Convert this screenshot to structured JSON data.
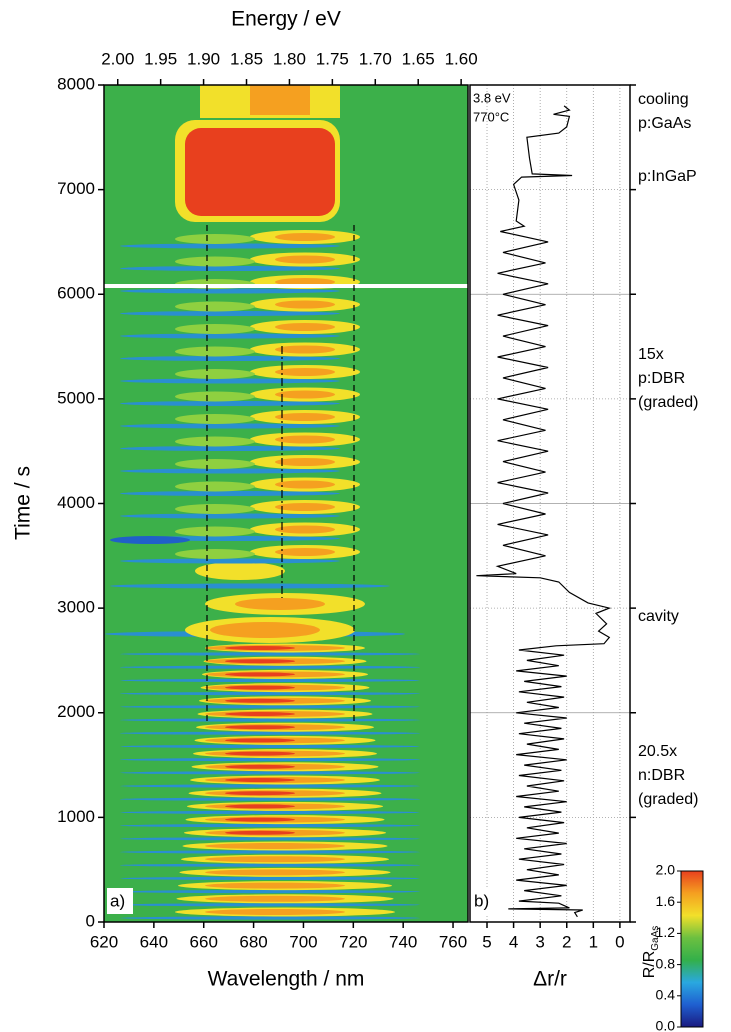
{
  "chart_data": [
    {
      "type": "heatmap",
      "panel_label": "a)",
      "xlabel": "Wavelength / nm",
      "x2label": "Energy / eV",
      "ylabel": "Time / s",
      "xlim": [
        620,
        766
      ],
      "xticks": [
        620,
        640,
        660,
        680,
        700,
        720,
        740,
        760
      ],
      "x2lim": [
        2.016,
        1.592
      ],
      "x2ticks": [
        {
          "value": 2,
          "label": "2.00"
        },
        1.95,
        {
          "value": 1.9,
          "label": "1.90"
        },
        1.85,
        {
          "value": 1.8,
          "label": "1.80"
        },
        1.75,
        {
          "value": 1.7,
          "label": "1.70"
        },
        1.65,
        {
          "value": 1.6,
          "label": "1.60"
        }
      ],
      "ylim": [
        0,
        8000
      ],
      "yticks": [
        0,
        1000,
        2000,
        3000,
        4000,
        5000,
        6000,
        7000,
        8000
      ]
    },
    {
      "type": "line",
      "panel_label": "b)",
      "xlabel": "Δr/r",
      "annotation": [
        "3.8 eV",
        "770°C"
      ],
      "stage_labels": [
        [
          "cooling",
          "p:GaAs"
        ],
        [
          "p:InGaP"
        ],
        [
          "15x",
          "p:DBR",
          "(graded)"
        ],
        [
          "cavity"
        ],
        [
          "20.5x",
          "n:DBR",
          "(graded)"
        ]
      ],
      "xlim": [
        5.64,
        -0.38
      ],
      "xticks": [
        5,
        4,
        3,
        2,
        1,
        0
      ],
      "grid": true,
      "series": [
        {
          "color": "#000000",
          "x": [
            50,
            90,
            115,
            125,
            135,
            180,
            200,
            250,
            300,
            350,
            400,
            450,
            500,
            550,
            600,
            650,
            700,
            750,
            800,
            850,
            900,
            950,
            1000,
            1050,
            1100,
            1150,
            1200,
            1250,
            1300,
            1350,
            1400,
            1450,
            1500,
            1550,
            1600,
            1650,
            1700,
            1750,
            1800,
            1850,
            1900,
            1950,
            2000,
            2050,
            2100,
            2150,
            2200,
            2250,
            2300,
            2350,
            2400,
            2450,
            2500,
            2550,
            2600,
            2640,
            2660,
            2720,
            2780,
            2850,
            2950,
            3000,
            3050,
            3150,
            3250,
            3290,
            3310,
            3330,
            3400,
            3500,
            3600,
            3700,
            3800,
            3900,
            4000,
            4100,
            4200,
            4300,
            4400,
            4500,
            4600,
            4700,
            4800,
            4900,
            5000,
            5100,
            5200,
            5300,
            5400,
            5500,
            5600,
            5700,
            5800,
            5900,
            6000,
            6100,
            6200,
            6300,
            6400,
            6500,
            6600,
            6650,
            6700,
            6900,
            7050,
            7120,
            7135,
            7150,
            7300,
            7500,
            7540,
            7600,
            7700,
            7720,
            7760,
            7800
          ],
          "values": [
            1.6,
            1.7,
            1.4,
            4.2,
            1.9,
            2.3,
            3.8,
            2.2,
            3.6,
            2.0,
            3.9,
            2.3,
            3.5,
            2.1,
            3.8,
            2.2,
            3.6,
            2.0,
            3.9,
            2.3,
            3.5,
            2.1,
            3.8,
            2.2,
            3.6,
            2.0,
            3.9,
            2.3,
            3.5,
            2.1,
            3.8,
            2.2,
            3.6,
            2.0,
            3.9,
            2.3,
            3.5,
            2.1,
            3.8,
            2.2,
            3.6,
            2.0,
            3.9,
            2.3,
            3.5,
            2.1,
            3.8,
            2.2,
            3.6,
            2.0,
            3.9,
            2.3,
            3.5,
            2.1,
            3.8,
            2.4,
            0.6,
            0.4,
            0.8,
            0.5,
            0.9,
            0.4,
            1.2,
            1.9,
            2.3,
            3.0,
            5.4,
            3.9,
            4.6,
            2.8,
            4.4,
            2.7,
            4.6,
            2.8,
            4.4,
            2.7,
            4.6,
            2.8,
            4.4,
            2.7,
            4.6,
            2.8,
            4.4,
            2.7,
            4.6,
            2.8,
            4.4,
            2.7,
            4.6,
            2.8,
            4.4,
            2.7,
            4.6,
            2.8,
            4.4,
            2.7,
            4.6,
            2.8,
            4.4,
            2.7,
            4.5,
            3.6,
            3.9,
            3.8,
            4.0,
            3.7,
            1.8,
            3.3,
            3.4,
            3.5,
            2.3,
            2.0,
            1.9,
            2.5,
            1.9,
            2.1
          ]
        }
      ]
    },
    {
      "type": "colorbar",
      "label": "R/R",
      "label_sub": "GaAs",
      "lim": [
        0,
        2
      ],
      "ticks": [
        {
          "value": 0,
          "label": "0.0"
        },
        0.4,
        0.8,
        1.2,
        1.6,
        {
          "value": 2,
          "label": "2.0"
        }
      ],
      "colormap": [
        "#1a1a80",
        "#1f5fd0",
        "#2aa8e0",
        "#33b04a",
        "#6cc040",
        "#f2e02a",
        "#f5a020",
        "#e8401e"
      ]
    }
  ]
}
